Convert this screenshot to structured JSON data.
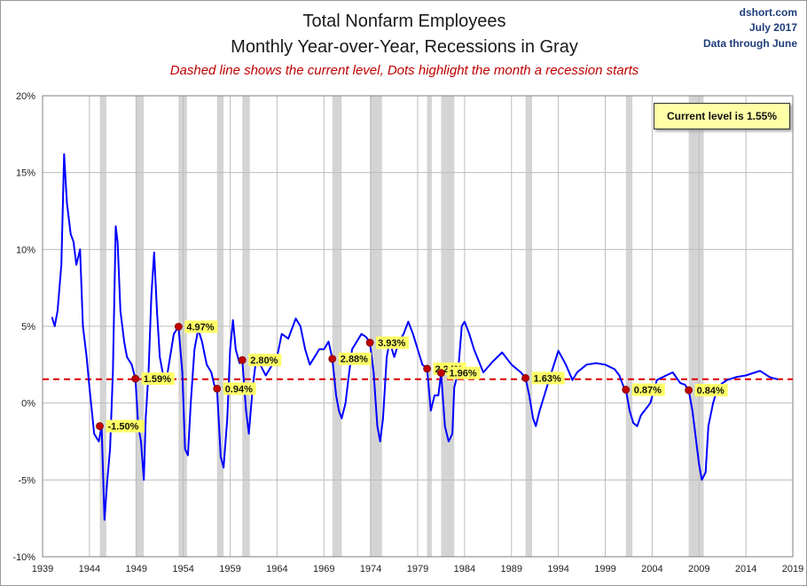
{
  "header": {
    "title_line1": "Total Nonfarm Employees",
    "title_line2": "Monthly Year-over-Year, Recessions in Gray",
    "subtitle": "Dashed line shows the current level, Dots highlight the month a recession starts",
    "source": "dshort.com",
    "date": "July 2017",
    "data_through": "Data through June"
  },
  "note": "Current level is 1.55%",
  "colors": {
    "line": "#0000ff",
    "current": "#dd0000",
    "dot": "#c00000",
    "recession": "#d4d4d4",
    "label_bg": "#ffff66"
  },
  "chart_data": {
    "type": "line",
    "title": "Total Nonfarm Employees",
    "xlim": [
      1939,
      2019
    ],
    "ylim": [
      -10,
      20
    ],
    "x_ticks": [
      "1939",
      "1944",
      "1949",
      "1954",
      "1959",
      "1964",
      "1969",
      "1974",
      "1979",
      "1984",
      "1989",
      "1994",
      "1999",
      "2004",
      "2009",
      "2014",
      "2019"
    ],
    "y_ticks": [
      "20%",
      "15%",
      "10%",
      "5%",
      "0%",
      "-5%",
      "-10%"
    ],
    "current_level": 1.55,
    "grid": true,
    "recessions": [
      [
        1945.1,
        1945.8
      ],
      [
        1948.9,
        1949.8
      ],
      [
        1953.5,
        1954.4
      ],
      [
        1957.6,
        1958.3
      ],
      [
        1960.3,
        1961.1
      ],
      [
        1969.9,
        1970.9
      ],
      [
        1973.9,
        1975.2
      ],
      [
        1980.0,
        1980.5
      ],
      [
        1981.5,
        1982.9
      ],
      [
        1990.5,
        1991.2
      ],
      [
        2001.2,
        2001.9
      ],
      [
        2007.9,
        2009.5
      ]
    ],
    "recession_starts": [
      {
        "x": 1945.1,
        "y": -1.5,
        "label": "-1.50%"
      },
      {
        "x": 1948.9,
        "y": 1.59,
        "label": "1.59%"
      },
      {
        "x": 1953.5,
        "y": 4.97,
        "label": "4.97%"
      },
      {
        "x": 1957.6,
        "y": 0.94,
        "label": "0.94%"
      },
      {
        "x": 1960.3,
        "y": 2.8,
        "label": "2.80%"
      },
      {
        "x": 1969.9,
        "y": 2.88,
        "label": "2.88%"
      },
      {
        "x": 1973.9,
        "y": 3.93,
        "label": "3.93%"
      },
      {
        "x": 1980.0,
        "y": 2.24,
        "label": "2.24%"
      },
      {
        "x": 1981.5,
        "y": 1.96,
        "label": "1.96%"
      },
      {
        "x": 1990.5,
        "y": 1.63,
        "label": "1.63%"
      },
      {
        "x": 2001.2,
        "y": 0.87,
        "label": "0.87%"
      },
      {
        "x": 2007.9,
        "y": 0.84,
        "label": "0.84%"
      }
    ],
    "series": [
      {
        "x": [
          1940.0,
          1940.3,
          1940.6,
          1941.0,
          1941.3,
          1941.6,
          1942.0,
          1942.3,
          1942.6,
          1943.0,
          1943.3,
          1943.7,
          1944.0,
          1944.5,
          1945.0,
          1945.3,
          1945.6,
          1945.9,
          1946.2,
          1946.5,
          1946.8,
          1947.0,
          1947.3,
          1947.7,
          1948.0,
          1948.5,
          1948.9,
          1949.2,
          1949.5,
          1949.8,
          1950.0,
          1950.3,
          1950.6,
          1950.9,
          1951.2,
          1951.5,
          1951.8,
          1952.2,
          1952.6,
          1953.0,
          1953.5,
          1953.9,
          1954.2,
          1954.5,
          1954.8,
          1955.2,
          1955.6,
          1956.0,
          1956.5,
          1957.0,
          1957.3,
          1957.6,
          1958.0,
          1958.3,
          1958.7,
          1959.0,
          1959.3,
          1959.6,
          1960.0,
          1960.3,
          1960.7,
          1961.0,
          1961.4,
          1961.8,
          1962.2,
          1962.8,
          1963.5,
          1964.0,
          1964.5,
          1965.2,
          1966.0,
          1966.5,
          1967.0,
          1967.5,
          1968.0,
          1968.5,
          1969.0,
          1969.5,
          1969.9,
          1970.3,
          1970.6,
          1970.9,
          1971.3,
          1971.6,
          1972.0,
          1972.5,
          1973.0,
          1973.5,
          1973.9,
          1974.3,
          1974.7,
          1975.0,
          1975.3,
          1975.7,
          1976.0,
          1976.5,
          1977.0,
          1977.5,
          1978.0,
          1978.5,
          1979.0,
          1979.5,
          1980.0,
          1980.4,
          1980.8,
          1981.2,
          1981.5,
          1981.9,
          1982.3,
          1982.7,
          1982.9,
          1983.3,
          1983.7,
          1984.0,
          1984.5,
          1985.0,
          1986.0,
          1987.0,
          1988.0,
          1989.0,
          1990.0,
          1990.5,
          1990.9,
          1991.3,
          1991.6,
          1992.0,
          1992.5,
          1993.0,
          1994.0,
          1994.8,
          1995.5,
          1996.0,
          1997.0,
          1998.0,
          1999.0,
          2000.0,
          2000.5,
          2001.0,
          2001.2,
          2001.6,
          2002.0,
          2002.4,
          2002.8,
          2003.3,
          2003.8,
          2004.5,
          2005.5,
          2006.2,
          2007.0,
          2007.5,
          2007.9,
          2008.3,
          2008.7,
          2009.0,
          2009.3,
          2009.7,
          2010.0,
          2010.5,
          2011.0,
          2011.5,
          2012.0,
          2013.0,
          2014.0,
          2015.0,
          2015.5,
          2016.0,
          2016.5,
          2017.0,
          2017.4
        ],
        "values": [
          5.6,
          5.0,
          6.0,
          9.0,
          16.2,
          13.0,
          11.0,
          10.5,
          9.0,
          10.0,
          5.0,
          3.0,
          1.0,
          -2.0,
          -2.5,
          -1.5,
          -7.6,
          -5.0,
          -3.0,
          2.0,
          11.5,
          10.5,
          6.0,
          4.0,
          3.0,
          2.5,
          1.59,
          -1.5,
          -2.5,
          -5.0,
          -1.0,
          2.0,
          7.0,
          9.8,
          6.0,
          3.0,
          2.0,
          1.5,
          3.0,
          4.5,
          4.97,
          2.0,
          -3.0,
          -3.4,
          0.0,
          3.5,
          4.8,
          4.0,
          2.5,
          2.0,
          1.2,
          0.94,
          -3.5,
          -4.2,
          -1.0,
          3.5,
          5.4,
          3.5,
          2.6,
          2.8,
          -0.5,
          -2.0,
          1.0,
          3.0,
          2.5,
          1.8,
          2.5,
          3.0,
          4.5,
          4.2,
          5.5,
          5.0,
          3.5,
          2.5,
          3.0,
          3.5,
          3.5,
          4.0,
          2.88,
          0.5,
          -0.5,
          -1.0,
          0.0,
          1.5,
          3.5,
          4.0,
          4.5,
          4.3,
          3.93,
          2.0,
          -1.5,
          -2.5,
          -1.0,
          3.0,
          4.0,
          3.0,
          4.0,
          4.5,
          5.3,
          4.5,
          3.5,
          2.5,
          2.24,
          -0.5,
          0.5,
          0.5,
          1.96,
          -1.5,
          -2.5,
          -2.0,
          1.0,
          2.0,
          5.0,
          5.3,
          4.5,
          3.5,
          2.0,
          2.7,
          3.3,
          2.5,
          2.0,
          1.63,
          0.5,
          -1.0,
          -1.5,
          -0.5,
          0.5,
          1.5,
          3.4,
          2.5,
          1.5,
          2.0,
          2.5,
          2.6,
          2.5,
          2.2,
          1.8,
          1.0,
          0.87,
          -0.5,
          -1.3,
          -1.5,
          -0.8,
          -0.4,
          0.0,
          1.5,
          1.8,
          2.0,
          1.3,
          1.2,
          0.84,
          -0.5,
          -2.5,
          -4.0,
          -5.0,
          -4.5,
          -1.5,
          0.0,
          1.0,
          1.3,
          1.5,
          1.7,
          1.8,
          2.0,
          2.1,
          1.9,
          1.7,
          1.6,
          1.55
        ]
      }
    ]
  }
}
